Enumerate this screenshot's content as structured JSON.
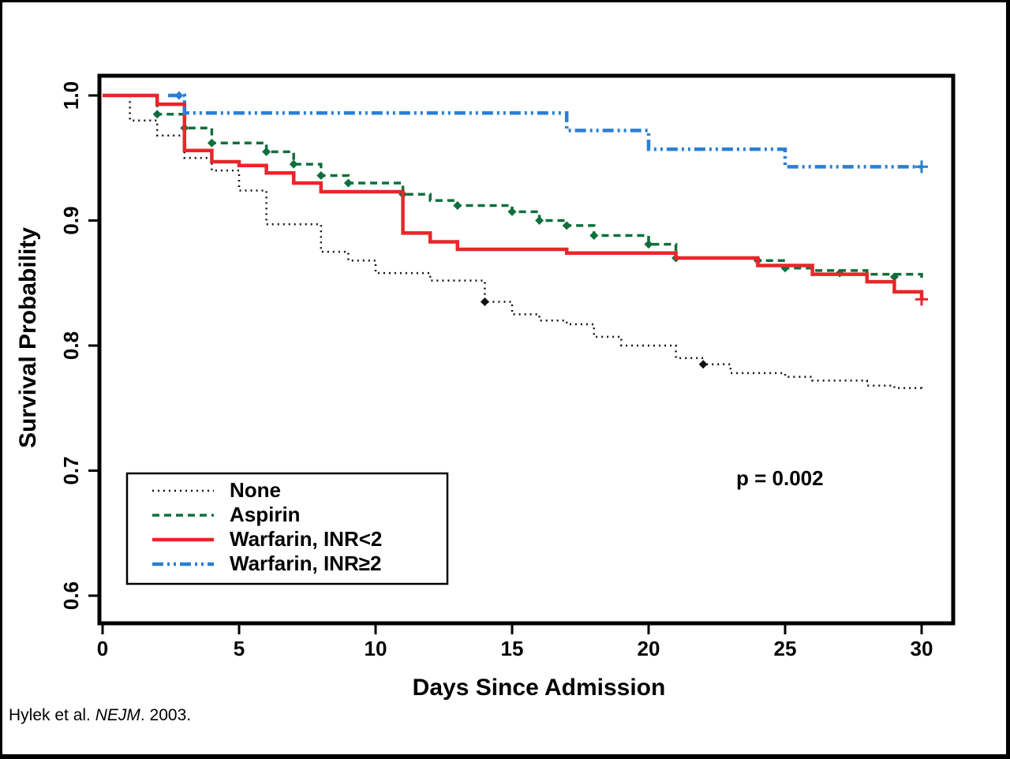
{
  "caption": {
    "prefix": "Hylek et al. ",
    "journal": "NEJM",
    "suffix": ". 2003."
  },
  "chart_data": {
    "type": "line",
    "subtype": "kaplan-meier-step",
    "title": "",
    "xlabel": "Days Since Admission",
    "ylabel": "Survival Probability",
    "xlim": [
      0,
      30
    ],
    "ylim": [
      0.6,
      1.0
    ],
    "x_ticks": [
      0,
      5,
      10,
      15,
      20,
      25,
      30
    ],
    "y_ticks": [
      1.0,
      0.9,
      0.8,
      0.7,
      0.6
    ],
    "annotation": "p = 0.002",
    "legend_position": "lower-left",
    "grid": false,
    "series": [
      {
        "name": "None",
        "color": "#111111",
        "style": "dotted",
        "width": 2.5,
        "points": [
          [
            0,
            1.0
          ],
          [
            1,
            0.98
          ],
          [
            2,
            0.968
          ],
          [
            3,
            0.95
          ],
          [
            4,
            0.94
          ],
          [
            5,
            0.924
          ],
          [
            6,
            0.897
          ],
          [
            8,
            0.875
          ],
          [
            9,
            0.868
          ],
          [
            10,
            0.858
          ],
          [
            12,
            0.852
          ],
          [
            14,
            0.835
          ],
          [
            15,
            0.825
          ],
          [
            16,
            0.82
          ],
          [
            17,
            0.817
          ],
          [
            18,
            0.807
          ],
          [
            19,
            0.8
          ],
          [
            21,
            0.79
          ],
          [
            22,
            0.785
          ],
          [
            23,
            0.778
          ],
          [
            25,
            0.775
          ],
          [
            26,
            0.772
          ],
          [
            28,
            0.768
          ],
          [
            29,
            0.766
          ],
          [
            30,
            0.765
          ]
        ],
        "markers": [
          [
            14,
            0.835
          ],
          [
            22,
            0.785
          ]
        ],
        "censors": []
      },
      {
        "name": "Aspirin",
        "color": "#0e6f3d",
        "style": "dashed",
        "width": 3.5,
        "points": [
          [
            0,
            1.0
          ],
          [
            2,
            0.985
          ],
          [
            3,
            0.974
          ],
          [
            4,
            0.962
          ],
          [
            6,
            0.955
          ],
          [
            7,
            0.945
          ],
          [
            8,
            0.936
          ],
          [
            9,
            0.93
          ],
          [
            11,
            0.921
          ],
          [
            12,
            0.916
          ],
          [
            13,
            0.912
          ],
          [
            15,
            0.907
          ],
          [
            16,
            0.9
          ],
          [
            17,
            0.896
          ],
          [
            18,
            0.888
          ],
          [
            20,
            0.881
          ],
          [
            21,
            0.87
          ],
          [
            24,
            0.868
          ],
          [
            25,
            0.862
          ],
          [
            26,
            0.86
          ],
          [
            28,
            0.857
          ],
          [
            30,
            0.853
          ]
        ],
        "markers": [
          [
            2,
            0.985
          ],
          [
            3,
            0.974
          ],
          [
            4,
            0.962
          ],
          [
            6,
            0.955
          ],
          [
            7,
            0.945
          ],
          [
            8,
            0.936
          ],
          [
            9,
            0.93
          ],
          [
            11,
            0.921
          ],
          [
            13,
            0.912
          ],
          [
            15,
            0.907
          ],
          [
            16,
            0.9
          ],
          [
            17,
            0.896
          ],
          [
            18,
            0.888
          ],
          [
            20,
            0.881
          ],
          [
            21,
            0.87
          ],
          [
            24,
            0.868
          ],
          [
            25,
            0.862
          ],
          [
            27,
            0.858
          ],
          [
            29,
            0.855
          ]
        ],
        "censors": []
      },
      {
        "name": "Warfarin, INR<2",
        "color": "#e8262a",
        "style": "solid",
        "width": 4.5,
        "points": [
          [
            0,
            1.0
          ],
          [
            2,
            0.993
          ],
          [
            3,
            0.956
          ],
          [
            4,
            0.947
          ],
          [
            5,
            0.944
          ],
          [
            6,
            0.938
          ],
          [
            7,
            0.93
          ],
          [
            8,
            0.923
          ],
          [
            11,
            0.89
          ],
          [
            12,
            0.883
          ],
          [
            13,
            0.877
          ],
          [
            17,
            0.874
          ],
          [
            21,
            0.87
          ],
          [
            24,
            0.864
          ],
          [
            26,
            0.857
          ],
          [
            28,
            0.851
          ],
          [
            29,
            0.843
          ],
          [
            30,
            0.837
          ]
        ],
        "markers": [],
        "censors": [
          [
            30,
            0.837
          ]
        ]
      },
      {
        "name": "Warfarin, INR≥2",
        "color": "#2a7fd4",
        "style": "dashdotdot",
        "width": 4.5,
        "points": [
          [
            2.4,
            1.0
          ],
          [
            3,
            0.986
          ],
          [
            17,
            0.972
          ],
          [
            20,
            0.957
          ],
          [
            25,
            0.943
          ],
          [
            30,
            0.943
          ]
        ],
        "markers": [
          [
            2.8,
            1.0
          ]
        ],
        "censors": [
          [
            30,
            0.943
          ]
        ]
      }
    ]
  }
}
